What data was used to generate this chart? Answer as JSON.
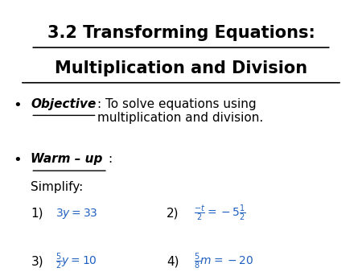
{
  "title_line1": "3.2 Transforming Equations:",
  "title_line2": "Multiplication and Division",
  "background_color": "#ffffff",
  "text_color": "#000000",
  "title_fontsize": 15,
  "body_fontsize": 11,
  "math_fontsize": 10,
  "bullet": "•",
  "objective_label": "Objective",
  "objective_colon_text": ": To solve equations using\nmultiplication and division.",
  "warmup_label": "Warm – up",
  "simplify_text": "Simplify:",
  "eq1_label": "1)",
  "eq1_math": "$3y = 33$",
  "eq2_label": "2)",
  "eq2_math": "$\\frac{-t}{2} = -5\\frac{1}{2}$",
  "eq3_label": "3)",
  "eq3_math": "$\\frac{5}{2}y = 10$",
  "eq4_label": "4)",
  "eq4_math": "$\\frac{5}{8}m = -20$",
  "eq_color": "#2060c0",
  "underline_lw": 1.2,
  "bullet_fontsize": 13
}
